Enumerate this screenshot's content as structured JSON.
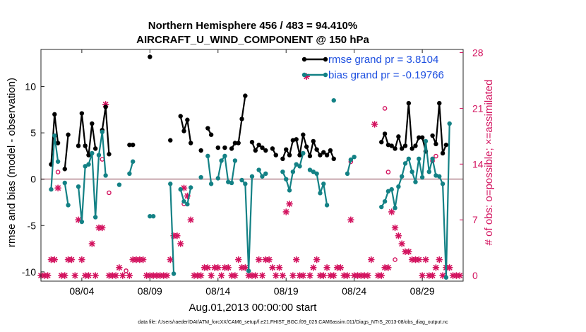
{
  "chart_data": {
    "type": "line",
    "title": "Northern Hemisphere 456 / 483 = 94.410%",
    "subtitle": "AIRCRAFT_U_WIND_COMPONENT @ 150 hPa",
    "xlabel": "Aug.01,2013 00:00:00 start",
    "ylabel": "rmse and bias (model - observation)",
    "y2label": "# of obs: o=possible; ×=assimilated",
    "xlim": [
      1.0,
      32.0
    ],
    "ylim": [
      -11,
      14
    ],
    "y2lim": [
      -0.7,
      28.4
    ],
    "x_ticks": [
      4,
      9,
      14,
      19,
      24,
      29
    ],
    "x_tick_labels": [
      "08/04",
      "08/09",
      "08/14",
      "08/19",
      "08/24",
      "08/29"
    ],
    "y_ticks": [
      -10,
      -5,
      0,
      5,
      10
    ],
    "y2_ticks": [
      0,
      7,
      14,
      21,
      28
    ],
    "zero_line": 0,
    "legend": [
      {
        "name": "rmse grand pr = 3.8104",
        "color": "#000000"
      },
      {
        "name": "bias grand pr = -0.19766",
        "color": "#138185"
      }
    ],
    "series": [
      {
        "name": "rmse",
        "color": "#000000",
        "points": [
          [
            1.75,
            1.6
          ],
          [
            2.0,
            7.0
          ],
          [
            2.25,
            3.9
          ],
          [
            2.75,
            1.1
          ],
          [
            3.0,
            4.8
          ],
          [
            3.75,
            3.6
          ],
          [
            4.0,
            7.1
          ],
          [
            4.25,
            3.6
          ],
          [
            4.5,
            2.6
          ],
          [
            4.75,
            6.0
          ],
          [
            5.0,
            3.3
          ],
          [
            5.5,
            5.3
          ],
          [
            5.75,
            7.8
          ],
          [
            6.0,
            2.7
          ],
          [
            7.5,
            3.7
          ],
          [
            7.75,
            3.7
          ],
          [
            9.0,
            13.2
          ],
          [
            10.5,
            4.2
          ],
          [
            11.25,
            6.8
          ],
          [
            11.5,
            5.2
          ],
          [
            11.75,
            6.4
          ],
          [
            12.0,
            3.9
          ],
          [
            12.75,
            3.1
          ],
          [
            13.25,
            5.5
          ],
          [
            13.5,
            4.8
          ],
          [
            14.0,
            3.4
          ],
          [
            14.5,
            3.4
          ],
          [
            15.0,
            3.3
          ],
          [
            15.25,
            3.9
          ],
          [
            15.5,
            3.9
          ],
          [
            15.75,
            6.5
          ],
          [
            16.0,
            9.0
          ],
          [
            16.5,
            4.0
          ],
          [
            16.75,
            3.1
          ],
          [
            17.0,
            3.7
          ],
          [
            17.25,
            3.4
          ],
          [
            17.5,
            3.1
          ],
          [
            18.0,
            3.3
          ],
          [
            18.25,
            2.6
          ],
          [
            18.75,
            2.2
          ],
          [
            19.0,
            3.2
          ],
          [
            19.25,
            2.6
          ],
          [
            19.5,
            4.2
          ],
          [
            19.75,
            4.3
          ],
          [
            20.0,
            2.6
          ],
          [
            20.25,
            4.8
          ],
          [
            20.5,
            3.5
          ],
          [
            20.75,
            2.5
          ],
          [
            21.0,
            4.1
          ],
          [
            21.25,
            3.2
          ],
          [
            21.5,
            2.6
          ],
          [
            21.75,
            2.9
          ],
          [
            22.0,
            2.6
          ],
          [
            22.25,
            3.1
          ],
          [
            22.5,
            2.2
          ],
          [
            26.0,
            4.0
          ],
          [
            26.25,
            4.9
          ],
          [
            26.5,
            3.7
          ],
          [
            26.75,
            3.6
          ],
          [
            27.0,
            3.3
          ],
          [
            27.25,
            4.6
          ],
          [
            27.5,
            3.3
          ],
          [
            27.75,
            3.6
          ],
          [
            28.0,
            8.2
          ],
          [
            28.25,
            3.3
          ],
          [
            28.5,
            3.6
          ],
          [
            28.75,
            4.5
          ],
          [
            29.0,
            4.5
          ],
          [
            29.25,
            3.0
          ],
          [
            29.75,
            4.7
          ],
          [
            30.0,
            3.8
          ],
          [
            30.25,
            8.2
          ],
          [
            30.5,
            2.8
          ],
          [
            30.75,
            3.7
          ]
        ]
      },
      {
        "name": "bias",
        "color": "#138185",
        "points": [
          [
            1.75,
            -1.1
          ],
          [
            2.0,
            4.7
          ],
          [
            2.25,
            1.9
          ],
          [
            2.75,
            -0.4
          ],
          [
            3.0,
            -2.8
          ],
          [
            3.75,
            -0.8
          ],
          [
            4.0,
            -4.6
          ],
          [
            4.25,
            1.4
          ],
          [
            4.5,
            1.6
          ],
          [
            4.75,
            2.8
          ],
          [
            5.0,
            -4.1
          ],
          [
            5.25,
            2.6
          ],
          [
            5.5,
            5.1
          ],
          [
            5.75,
            0.4
          ],
          [
            6.75,
            -0.6
          ],
          [
            7.5,
            0.6
          ],
          [
            7.75,
            1.9
          ],
          [
            9.0,
            -4.0
          ],
          [
            9.25,
            -4.0
          ],
          [
            10.5,
            -0.5
          ],
          [
            10.75,
            -10.2
          ],
          [
            11.25,
            -1.1
          ],
          [
            11.5,
            -2.4
          ],
          [
            11.75,
            -2.7
          ],
          [
            12.0,
            -0.9
          ],
          [
            12.75,
            0.2
          ],
          [
            13.25,
            2.5
          ],
          [
            13.5,
            -0.5
          ],
          [
            14.0,
            0.1
          ],
          [
            14.25,
            2.0
          ],
          [
            14.5,
            2.5
          ],
          [
            14.75,
            -0.3
          ],
          [
            15.0,
            -0.4
          ],
          [
            15.25,
            2.0
          ],
          [
            15.75,
            -0.1
          ],
          [
            16.0,
            -0.5
          ],
          [
            16.25,
            -9.9
          ],
          [
            16.5,
            0.3
          ],
          [
            17.0,
            1.0
          ],
          [
            17.25,
            0.3
          ],
          [
            17.5,
            0.6
          ],
          [
            18.75,
            0.8
          ],
          [
            19.0,
            0.0
          ],
          [
            19.25,
            -1.2
          ],
          [
            19.5,
            0.8
          ],
          [
            19.75,
            1.6
          ],
          [
            20.0,
            1.4
          ],
          [
            20.25,
            2.8
          ],
          [
            20.75,
            1.0
          ],
          [
            21.0,
            0.8
          ],
          [
            21.25,
            0.6
          ],
          [
            21.5,
            -1.5
          ],
          [
            21.75,
            -0.5
          ],
          [
            22.0,
            -2.8
          ],
          [
            22.5,
            8.5
          ],
          [
            23.5,
            0.6
          ],
          [
            23.75,
            2.1
          ],
          [
            24.0,
            2.4
          ],
          [
            26.0,
            -3.0
          ],
          [
            26.25,
            -2.4
          ],
          [
            26.5,
            -1.3
          ],
          [
            26.75,
            -1.1
          ],
          [
            27.0,
            -3.1
          ],
          [
            27.25,
            -0.8
          ],
          [
            27.5,
            0.3
          ],
          [
            27.75,
            1.7
          ],
          [
            28.0,
            2.2
          ],
          [
            28.25,
            0.8
          ],
          [
            28.5,
            -0.3
          ],
          [
            28.75,
            2.2
          ],
          [
            29.0,
            0.2
          ],
          [
            29.25,
            4.1
          ],
          [
            29.5,
            0.8
          ],
          [
            29.75,
            2.2
          ],
          [
            30.0,
            0.4
          ],
          [
            30.25,
            0.3
          ],
          [
            30.5,
            -0.5
          ],
          [
            30.75,
            -10.6
          ],
          [
            31.0,
            6.0
          ]
        ]
      }
    ],
    "obs_possible": [
      [
        2.25,
        13.0
      ],
      [
        6.0,
        10.4
      ],
      [
        5.5,
        14.6
      ],
      [
        7.25,
        0.6
      ],
      [
        11.5,
        9.0
      ],
      [
        23.75,
        14.3
      ],
      [
        26.25,
        21.0
      ],
      [
        26.5,
        13.0
      ],
      [
        27.0,
        2.0
      ],
      [
        29.75,
        14.4
      ],
      [
        30.0,
        15.0
      ]
    ],
    "obs_assimilated": [
      [
        1.0,
        0.0
      ],
      [
        1.25,
        0.0
      ],
      [
        1.5,
        0.0
      ],
      [
        1.75,
        2.0
      ],
      [
        2.0,
        2.0
      ],
      [
        2.25,
        11.0
      ],
      [
        2.5,
        0.0
      ],
      [
        2.75,
        0.0
      ],
      [
        3.0,
        2.0
      ],
      [
        3.25,
        2.0
      ],
      [
        3.5,
        0.0
      ],
      [
        3.75,
        7.0
      ],
      [
        4.0,
        2.0
      ],
      [
        4.25,
        0.0
      ],
      [
        4.5,
        0.0
      ],
      [
        4.75,
        4.0
      ],
      [
        5.0,
        0.0
      ],
      [
        5.25,
        6.0
      ],
      [
        5.5,
        6.0
      ],
      [
        5.75,
        21.5
      ],
      [
        6.0,
        0.0
      ],
      [
        6.25,
        0.0
      ],
      [
        6.5,
        0.0
      ],
      [
        6.75,
        1.0
      ],
      [
        7.0,
        0.0
      ],
      [
        7.5,
        0.0
      ],
      [
        7.75,
        2.0
      ],
      [
        8.0,
        2.0
      ],
      [
        8.25,
        2.0
      ],
      [
        8.5,
        2.0
      ],
      [
        8.75,
        0.0
      ],
      [
        9.0,
        0.0
      ],
      [
        9.25,
        0.0
      ],
      [
        9.5,
        0.0
      ],
      [
        9.75,
        0.0
      ],
      [
        10.0,
        0.0
      ],
      [
        10.25,
        0.0
      ],
      [
        10.5,
        2.0
      ],
      [
        10.75,
        5.0
      ],
      [
        11.0,
        5.0
      ],
      [
        11.25,
        4.0
      ],
      [
        11.5,
        11.0
      ],
      [
        11.75,
        10.0
      ],
      [
        12.0,
        7.0
      ],
      [
        12.25,
        0.0
      ],
      [
        12.5,
        0.0
      ],
      [
        12.75,
        0.0
      ],
      [
        13.0,
        1.0
      ],
      [
        13.25,
        1.0
      ],
      [
        13.5,
        0.0
      ],
      [
        13.75,
        1.0
      ],
      [
        14.0,
        1.0
      ],
      [
        14.25,
        0.0
      ],
      [
        14.5,
        1.0
      ],
      [
        14.75,
        1.0
      ],
      [
        15.0,
        0.0
      ],
      [
        15.25,
        0.0
      ],
      [
        15.5,
        2.0
      ],
      [
        15.75,
        1.0
      ],
      [
        16.0,
        1.0
      ],
      [
        16.25,
        0.0
      ],
      [
        16.5,
        0.0
      ],
      [
        16.75,
        0.0
      ],
      [
        17.0,
        2.0
      ],
      [
        17.25,
        0.0
      ],
      [
        17.5,
        2.0
      ],
      [
        17.75,
        2.0
      ],
      [
        18.0,
        1.0
      ],
      [
        18.25,
        0.0
      ],
      [
        18.5,
        1.0
      ],
      [
        18.75,
        0.0
      ],
      [
        19.0,
        8.0
      ],
      [
        19.25,
        9.0
      ],
      [
        19.5,
        0.0
      ],
      [
        19.75,
        2.0
      ],
      [
        20.0,
        0.0
      ],
      [
        20.25,
        0.0
      ],
      [
        20.5,
        25.0
      ],
      [
        20.75,
        0.0
      ],
      [
        21.0,
        1.0
      ],
      [
        21.25,
        2.0
      ],
      [
        21.5,
        0.0
      ],
      [
        21.75,
        0.0
      ],
      [
        22.0,
        1.0
      ],
      [
        22.25,
        0.0
      ],
      [
        22.5,
        0.0
      ],
      [
        22.75,
        1.0
      ],
      [
        23.0,
        1.0
      ],
      [
        23.25,
        0.0
      ],
      [
        23.5,
        0.0
      ],
      [
        23.75,
        7.0
      ],
      [
        24.0,
        0.0
      ],
      [
        24.25,
        0.0
      ],
      [
        24.5,
        0.0
      ],
      [
        24.75,
        0.0
      ],
      [
        25.0,
        0.0
      ],
      [
        25.25,
        2.0
      ],
      [
        25.5,
        19.0
      ],
      [
        25.75,
        0.0
      ],
      [
        26.0,
        0.0
      ],
      [
        26.25,
        1.0
      ],
      [
        26.5,
        1.0
      ],
      [
        26.75,
        8.0
      ],
      [
        27.0,
        6.0
      ],
      [
        27.25,
        5.0
      ],
      [
        27.5,
        4.0
      ],
      [
        27.75,
        3.0
      ],
      [
        28.0,
        3.0
      ],
      [
        28.25,
        2.0
      ],
      [
        28.5,
        2.0
      ],
      [
        28.75,
        2.0
      ],
      [
        29.0,
        0.0
      ],
      [
        29.25,
        2.0
      ],
      [
        29.5,
        0.0
      ],
      [
        29.75,
        0.0
      ],
      [
        30.0,
        1.0
      ],
      [
        30.25,
        2.0
      ],
      [
        30.5,
        0.0
      ],
      [
        30.75,
        1.0
      ],
      [
        31.0,
        1.0
      ],
      [
        31.25,
        0.0
      ],
      [
        31.5,
        0.0
      ],
      [
        31.75,
        0.0
      ]
    ],
    "colors": {
      "rmse": "#000000",
      "bias": "#138185",
      "obs": "#d3135f",
      "zero_line": "#c8a6ad",
      "legend_text": "#1d4fe0"
    }
  },
  "footer": "data file: /Users/raeder/DAI/ATM_forcXX/CAM6_setup/f.e21.FHIST_BGC.f09_025.CAM6assim.011/Diags_NTrS_2013-08/obs_diag_output.nc"
}
